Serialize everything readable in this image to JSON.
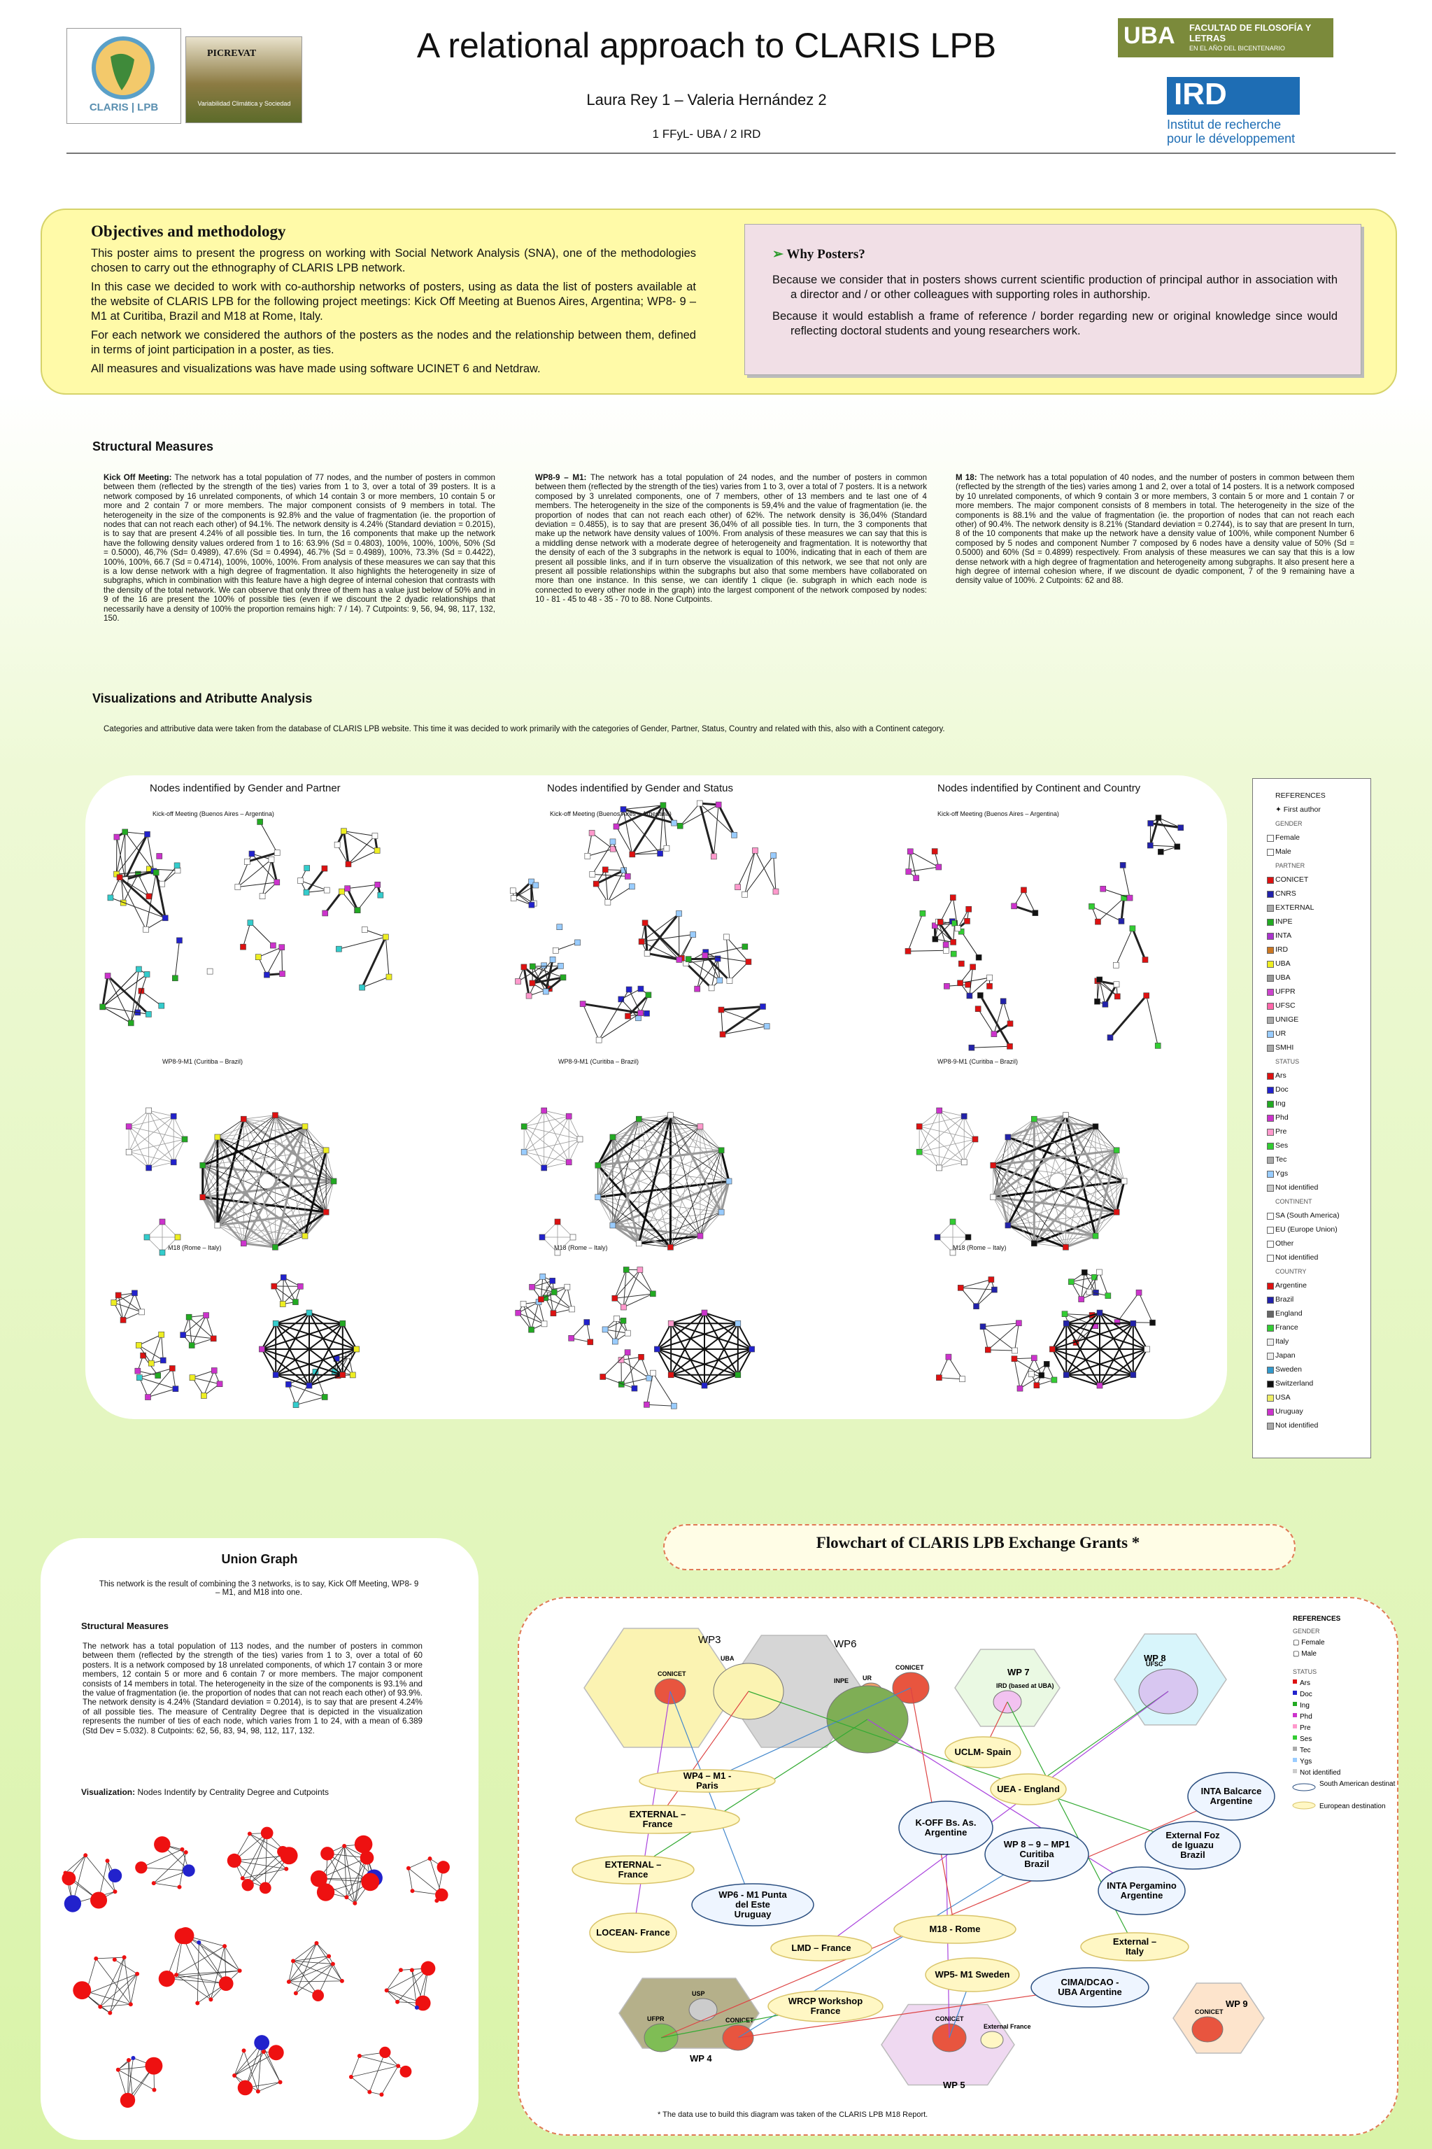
{
  "header": {
    "title": "A relational approach to CLARIS LPB",
    "authors": "Laura Rey 1 – Valeria Hernández 2",
    "affiliations": "1 FFyL- UBA / 2 IRD",
    "logos": {
      "claris": "CLARIS | LPB",
      "picrevat": "PICREVAT",
      "picrevat_sub": "Variabilidad Climática y Sociedad",
      "uba_line1": "UBA",
      "uba_line2": "FACULTAD DE FILOSOFÍA Y LETRAS",
      "uba_line3": "EN EL AÑO DEL BICENTENARIO",
      "ird": "IRD",
      "ird_sub1": "Institut de recherche",
      "ird_sub2": "pour le développement"
    }
  },
  "objectives": {
    "title": "Objectives and methodology",
    "p1": "This poster aims to present the progress on working with Social Network Analysis (SNA), one of the methodologies chosen to carry out the ethnography of CLARIS LPB network.",
    "p2": "In this case we decided to work with co-authorship networks of posters, using as data the list of posters available at the website of CLARIS LPB for the following project meetings: Kick Off Meeting at Buenos Aires, Argentina; WP8- 9 – M1 at Curitiba, Brazil and M18 at Rome, Italy.",
    "p3": "For each network we considered the authors of the posters as the nodes and the relationship between them, defined in terms of joint participation in a poster, as ties.",
    "p4": "All measures and visualizations was have made using software UCINET 6 and Netdraw."
  },
  "why": {
    "title": "Why Posters?",
    "p1": "Because we consider that in posters shows current scientific production of principal author in association with a director and / or other colleagues with supporting roles in authorship.",
    "p2": "Because it would establish a frame of reference / border regarding new or original knowledge since would reflecting doctoral students and young researchers work."
  },
  "structural": {
    "title": "Structural Measures",
    "kickoff_head": "Kick Off Meeting:",
    "kickoff": "The network has a total population of 77 nodes, and the number of posters in common between them (reflected by the strength of the ties) varies from 1 to 3, over a total of 39 posters. It is a network composed by 16 unrelated components, of which 14 contain 3 or more members, 10 contain 5 or more and 2 contain 7 or more members. The major component consists of 9 members in total. The heterogeneity in the size of the components is 92.8% and the value of fragmentation (ie. the proportion of nodes that can not reach each other) of 94.1%. The network density is 4.24% (Standard deviation = 0.2015), is to say that are present 4.24% of all possible ties. In turn, the 16 components that make up the network have the following density values ordered from 1 to 16: 63.9% (Sd = 0.4803), 100%, 100%, 100%, 50% (Sd = 0.5000), 46,7% (Sd= 0.4989), 47.6% (Sd = 0.4994), 46.7% (Sd = 0.4989), 100%, 73.3% (Sd = 0.4422), 100%, 100%, 66.7 (Sd = 0.4714), 100%, 100%, 100%. From analysis of these measures we can say that this is a low dense network with a high degree of fragmentation. It also highlights the heterogeneity in size of subgraphs, which in combination with this feature have a high degree of internal cohesion that contrasts with the density of the total network. We can observe that only three of them has a value just below of 50% and in 9 of the 16 are present the 100% of possible ties (even if we discount the 2 dyadic relationships that necessarily have a density of 100% the proportion remains high: 7 / 14). 7 Cutpoints: 9, 56, 94, 98, 117, 132, 150.",
    "wp89_head": "WP8-9 – M1:",
    "wp89": "The network has a total population of 24 nodes, and the number of posters in common between them (reflected by the strength of the ties) varies from 1 to 3, over a total of 7 posters. It is a network composed by 3 unrelated components, one of 7 members, other of 13 members and te last one of 4 members. The heterogeneity in the size of the components is 59,4% and the value of fragmentation (ie. the proportion of nodes that can not reach each other) of 62%. The network density is 36,04% (Standard deviation = 0.4855), is to say that are present 36,04% of all possible ties. In turn, the 3 components that make up the network have density values of 100%. From analysis of these measures we can say that this is a middling dense network with a moderate degree of heterogeneity and fragmentation. It is noteworthy that the density of each of the 3 subgraphs in the network is equal to 100%, indicating that in each of them are present all possible links, and if in turn observe the visualization of this network, we see that not only are present all possible relationships within the subgraphs but also that some members have collaborated on more than one instance. In this sense, we can identify 1 clique (ie. subgraph in which each node is connected to every other node in the graph) into the largest component of the network composed by nodes: 10 - 81 - 45 to 48 - 35 - 70 to 88. None Cutpoints.",
    "m18_head": "M 18:",
    "m18": "The network has a total population of 40 nodes, and the number of posters in common between them (reflected by the strength of the ties) varies among 1 and 2, over a total of 14 posters. It is a network composed by 10 unrelated components, of which 9 contain 3 or more members, 3 contain 5 or more and 1 contain 7 or more members. The major component consists of 8 members in total. The heterogeneity in the size of the components is 88.1% and the value of fragmentation (ie. the proportion of nodes that can not reach each other) of 90.4%. The network density is 8.21% (Standard deviation = 0.2744), is to say that are present In turn, 8 of the 10 components that make up the network have a density value of 100%, while component Number 6 composed by 5 nodes and component Number 7 composed by 6 nodes have a density value of 50% (Sd = 0.5000) and 60% (Sd = 0.4899) respectively. From analysis of these measures we can say that this is a low dense network with a high degree of fragmentation and heterogeneity among subgraphs. It also present here a high degree of internal cohesion where, if we discount de dyadic component, 7 of the 9 remaining have a density value of 100%. 2 Cutpoints: 62 and 88."
  },
  "visualizations": {
    "title": "Visualizations and Atributte Analysis",
    "intro": "Categories and attributive data were taken from the database of CLARIS LPB website. This time it was decided to work primarily with the categories of Gender, Partner, Status, Country and related with this, also with a Continent category.",
    "col1": "Nodes indentified by Gender and Partner",
    "col2": "Nodes indentified by Gender and Status",
    "col3": "Nodes indentified by Continent and Country",
    "row1": "Kick-off Meeting (Buenos Aires – Argentina)",
    "row2": "WP8-9-M1 (Curitiba – Brazil)",
    "row3": "M18 (Rome – Italy)"
  },
  "references": {
    "title": "REFERENCES",
    "first_author": "First author",
    "gender": "GENDER",
    "gender_items": [
      "Female",
      "Male"
    ],
    "partner": "PARTNER",
    "partner_items": [
      "CONICET",
      "CNRS",
      "EXTERNAL",
      "INPE",
      "INTA",
      "IRD",
      "UBA",
      "UBA",
      "UFPR",
      "UFSC",
      "UNIGE",
      "UR",
      "SMHI"
    ],
    "partner_colors": [
      "#d11",
      "#22a",
      "#aaa",
      "#2a2",
      "#a3c",
      "#c72",
      "#ee2",
      "#999",
      "#c4c",
      "#f6a",
      "#aaa",
      "#9cf",
      "#aaa"
    ],
    "status": "STATUS",
    "status_items": [
      "Ars",
      "Doc",
      "Ing",
      "Phd",
      "Pre",
      "Ses",
      "Tec",
      "Ygs",
      "Not identified"
    ],
    "status_colors": [
      "#d11",
      "#22c",
      "#2a2",
      "#c3c",
      "#f9c",
      "#3c3",
      "#aaa",
      "#9cf",
      "#ccc"
    ],
    "continent": "CONTINENT",
    "continent_items": [
      "SA (South America)",
      "EU (Europe Union)",
      "Other",
      "Not identified"
    ],
    "country": "COUNTRY",
    "country_items": [
      "Argentine",
      "Brazil",
      "England",
      "France",
      "Italy",
      "Japan",
      "Sweden",
      "Switzerland",
      "USA",
      "Uruguay",
      "Not identified"
    ],
    "country_colors": [
      "#d11",
      "#22a",
      "#666",
      "#3c3",
      "#eee",
      "#eee",
      "#39c",
      "#111",
      "#ee6",
      "#c3c",
      "#aaa"
    ]
  },
  "union": {
    "title": "Union Graph",
    "intro": "This network is the result of combining the 3 networks, is to say, Kick Off Meeting, WP8- 9 – M1, and M18 into one.",
    "sm_title": "Structural Measures",
    "sm_text": "The network has a total population of 113 nodes, and the number of posters in common between them (reflected by the strength of the ties) varies from 1 to 3, over a total of 60 posters. It is a network composed by 18 unrelated components, of which 17 contain 3 or more members, 12 contain 5 or more and 6 contain 7 or more members. The major component consists of 14 members in total. The heterogeneity in the size of the components is 93.1% and the value of fragmentation (ie. the proportion of nodes that can not reach each other) of 93.9%. The network density is 4.24% (Standard deviation = 0.2014), is to say that are present 4.24% of all possible ties. The measure of Centrality Degree that is depicted in the visualization represents the number of ties of each node, which varies from 1 to 24, with a mean of 6.389 (Std Dev = 5.032). 8 Cutpoints: 62, 56, 83, 94, 98, 112, 117, 132.",
    "vis_label": "Visualization:",
    "vis_text": "Nodes Indentify by Centrality Degree and Cutpoints"
  },
  "flowchart": {
    "title": "Flowchart of CLARIS LPB Exchange Grants *",
    "footnote": "* The data use to build this diagram was taken of the CLARIS LPB M18 Report.",
    "groups": {
      "wp3": "WP3",
      "wp6": "WP6",
      "wp7": "WP 7",
      "wp8": "WP 8",
      "wp4": "WP 4",
      "wp5": "WP 5",
      "wp9": "WP 9",
      "conicet": "CONICET",
      "uba": "UBA",
      "ur": "UR",
      "inpe": "INPE",
      "ird": "IRD (based at UBA)",
      "ufsc": "UFSC",
      "usp": "USP",
      "ufpr": "UFPR",
      "external_france": "External France"
    },
    "destinations": [
      "EXTERNAL – France",
      "EXTERNAL – France",
      "LOCEAN- France",
      "WP4 – M1 - Paris",
      "UCLM- Spain",
      "UEA - England",
      "K-OFF Bs. As. Argentine",
      "WP 8 – 9 – MP1 Curitiba Brazil",
      "INTA Balcarce Argentine",
      "External Foz de Iguazu Brazil",
      "INTA Pergamino Argentine",
      "WP6 - M1 Punta del Este Uruguay",
      "M18 - Rome",
      "External – Italy",
      "LMD – France",
      "WP5- M1 Sweden",
      "CIMA/DCAO - UBA Argentine",
      "WRCP Workshop France"
    ],
    "refs_title": "REFERENCES",
    "refs_gender": "GENDER",
    "refs_gender_items": [
      "Female",
      "Male"
    ],
    "refs_status": "STATUS",
    "refs_status_items": [
      "Ars",
      "Doc",
      "Ing",
      "Phd",
      "Pre",
      "Ses",
      "Tec",
      "Ygs",
      "Not identified"
    ],
    "refs_sa": "South American destination",
    "refs_eu": "European destination"
  }
}
